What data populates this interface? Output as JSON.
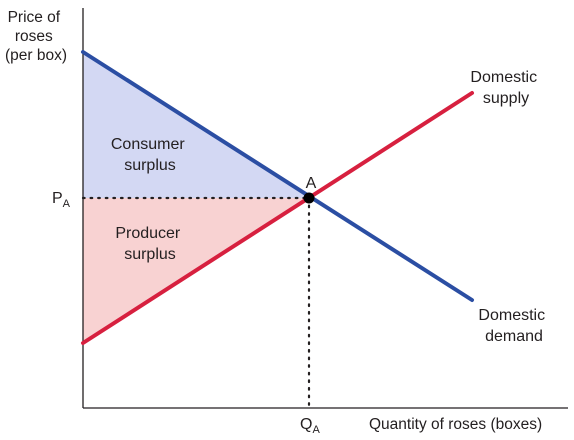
{
  "axes": {
    "y_label_lines": [
      "Price of",
      "roses",
      "(per box)"
    ],
    "x_label": "Quantity of roses (boxes)"
  },
  "equilibrium": {
    "point_label": "A",
    "price_label": "P",
    "price_sub": "A",
    "quantity_label": "Q",
    "quantity_sub": "A"
  },
  "curves": {
    "supply": {
      "label_lines": [
        "Domestic",
        "supply"
      ],
      "color": "#d7203f"
    },
    "demand": {
      "label_lines": [
        "Domestic",
        "demand"
      ],
      "color": "#2b4ea3"
    }
  },
  "regions": {
    "consumer_surplus": {
      "label_lines": [
        "Consumer",
        "surplus"
      ],
      "color": "#d3d8f3"
    },
    "producer_surplus": {
      "label_lines": [
        "Producer",
        "surplus"
      ],
      "color": "#f8d2d2"
    }
  }
}
